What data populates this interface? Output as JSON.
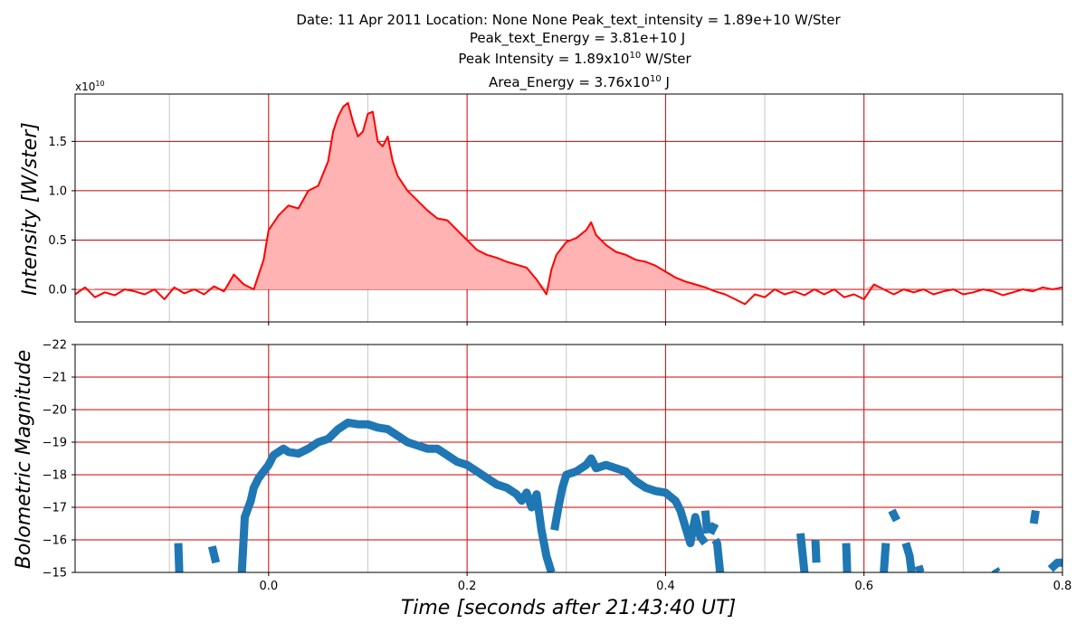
{
  "header": {
    "line1": "Date: 11 Apr 2011      Location: None None Peak_text_intensity = 1.89e+10 W/Ster",
    "line2": "Peak_text_Energy = 3.81e+10 J",
    "line3_base": "Peak Intensity = 1.89x10",
    "line3_exp": "10",
    "line3_unit": " W/Ster",
    "line4_base": "Area_Energy = 3.76x10",
    "line4_exp": "10",
    "line4_unit": " J"
  },
  "colors": {
    "intensity_line": "#ff0000",
    "intensity_fill": "#ffb3b3",
    "magnitude_line": "#1f77b4",
    "red_grid": "#cc0000",
    "gray_grid": "#c8c8c8"
  },
  "chart_data": [
    {
      "type": "area",
      "ylabel": "Intensity [W/ster]",
      "xlabel": "",
      "xlim": [
        -0.195,
        0.8
      ],
      "ylim": [
        -0.33,
        1.98
      ],
      "y_scale_label": "x10",
      "y_scale_exp": "10",
      "yticks": [
        0.0,
        0.5,
        1.0,
        1.5
      ],
      "ytick_labels": [
        "0.0",
        "0.5",
        "1.0",
        "1.5"
      ],
      "red_vlines": [
        0.0,
        0.2,
        0.4,
        0.6
      ],
      "gray_vlines": [
        -0.1,
        0.1,
        0.3,
        0.5,
        0.7
      ],
      "series": [
        {
          "x": [
            -0.195,
            -0.185,
            -0.175,
            -0.165,
            -0.155,
            -0.145,
            -0.135,
            -0.125,
            -0.115,
            -0.105,
            -0.095,
            -0.085,
            -0.075,
            -0.065,
            -0.055,
            -0.045,
            -0.035,
            -0.025,
            -0.015,
            -0.005,
            0.0,
            0.01,
            0.02,
            0.03,
            0.04,
            0.05,
            0.06,
            0.065,
            0.07,
            0.075,
            0.08,
            0.085,
            0.09,
            0.095,
            0.1,
            0.105,
            0.11,
            0.115,
            0.12,
            0.125,
            0.13,
            0.14,
            0.15,
            0.16,
            0.17,
            0.18,
            0.19,
            0.2,
            0.21,
            0.22,
            0.23,
            0.24,
            0.25,
            0.26,
            0.27,
            0.28,
            0.285,
            0.29,
            0.3,
            0.31,
            0.32,
            0.325,
            0.33,
            0.34,
            0.35,
            0.36,
            0.37,
            0.38,
            0.39,
            0.4,
            0.41,
            0.42,
            0.43,
            0.44,
            0.45,
            0.46,
            0.47,
            0.48,
            0.49,
            0.5,
            0.51,
            0.52,
            0.53,
            0.54,
            0.55,
            0.56,
            0.57,
            0.58,
            0.59,
            0.6,
            0.61,
            0.62,
            0.63,
            0.64,
            0.65,
            0.66,
            0.67,
            0.68,
            0.69,
            0.7,
            0.71,
            0.72,
            0.73,
            0.74,
            0.75,
            0.76,
            0.77,
            0.78,
            0.79,
            0.8
          ],
          "y": [
            -0.05,
            0.02,
            -0.08,
            -0.03,
            -0.06,
            0.0,
            -0.02,
            -0.05,
            0.0,
            -0.1,
            0.02,
            -0.04,
            0.0,
            -0.05,
            0.03,
            -0.02,
            0.15,
            0.05,
            0.0,
            0.3,
            0.6,
            0.75,
            0.85,
            0.82,
            1.0,
            1.05,
            1.3,
            1.6,
            1.75,
            1.85,
            1.89,
            1.7,
            1.55,
            1.6,
            1.78,
            1.8,
            1.5,
            1.45,
            1.55,
            1.3,
            1.15,
            1.0,
            0.9,
            0.8,
            0.72,
            0.7,
            0.6,
            0.5,
            0.4,
            0.35,
            0.32,
            0.28,
            0.25,
            0.22,
            0.1,
            -0.05,
            0.2,
            0.35,
            0.48,
            0.52,
            0.6,
            0.68,
            0.55,
            0.45,
            0.38,
            0.35,
            0.3,
            0.28,
            0.24,
            0.18,
            0.12,
            0.08,
            0.05,
            0.02,
            -0.02,
            -0.05,
            -0.1,
            -0.15,
            -0.05,
            -0.08,
            0.0,
            -0.05,
            -0.02,
            -0.06,
            0.0,
            -0.05,
            0.0,
            -0.08,
            -0.05,
            -0.1,
            0.05,
            0.0,
            -0.05,
            0.0,
            -0.03,
            0.0,
            -0.05,
            -0.02,
            0.0,
            -0.05,
            -0.03,
            0.0,
            -0.02,
            -0.06,
            -0.03,
            0.0,
            -0.02,
            0.02,
            0.0,
            0.02
          ]
        }
      ]
    },
    {
      "type": "line",
      "ylabel": "Bolometric Magnitude",
      "xlabel": "Time [seconds after 21:43:40 UT]",
      "xlim": [
        -0.195,
        0.8
      ],
      "ylim": [
        -15,
        -22
      ],
      "yticks": [
        -15,
        -16,
        -17,
        -18,
        -19,
        -20,
        -21,
        -22
      ],
      "ytick_labels": [
        "−15",
        "−16",
        "−17",
        "−18",
        "−19",
        "−20",
        "−21",
        "−22"
      ],
      "xticks": [
        0.0,
        0.2,
        0.4,
        0.6,
        0.8
      ],
      "xtick_labels": [
        "0.0",
        "0.2",
        "0.4",
        "0.6",
        "0.8"
      ],
      "red_vlines": [
        0.0,
        0.2,
        0.4,
        0.6
      ],
      "gray_vlines": [
        -0.1,
        0.1,
        0.3,
        0.5,
        0.7
      ],
      "series": [
        {
          "segments": [
            [
              [
                -0.091,
                -15.9
              ],
              [
                -0.09,
                -15.0
              ]
            ],
            [
              [
                -0.057,
                -15.8
              ],
              [
                -0.053,
                -15.3
              ]
            ],
            [
              [
                -0.027,
                -15.0
              ],
              [
                -0.024,
                -16.7
              ],
              [
                -0.018,
                -17.2
              ],
              [
                -0.015,
                -17.6
              ],
              [
                -0.01,
                -17.9
              ],
              [
                -0.005,
                -18.1
              ],
              [
                0.0,
                -18.3
              ],
              [
                0.005,
                -18.6
              ],
              [
                0.01,
                -18.7
              ],
              [
                0.015,
                -18.8
              ],
              [
                0.02,
                -18.7
              ],
              [
                0.03,
                -18.65
              ],
              [
                0.04,
                -18.8
              ],
              [
                0.05,
                -19.0
              ],
              [
                0.06,
                -19.1
              ],
              [
                0.07,
                -19.4
              ],
              [
                0.08,
                -19.6
              ],
              [
                0.09,
                -19.55
              ],
              [
                0.1,
                -19.55
              ],
              [
                0.11,
                -19.45
              ],
              [
                0.12,
                -19.4
              ],
              [
                0.13,
                -19.2
              ],
              [
                0.14,
                -19.0
              ],
              [
                0.15,
                -18.9
              ],
              [
                0.16,
                -18.8
              ],
              [
                0.17,
                -18.8
              ],
              [
                0.18,
                -18.6
              ],
              [
                0.19,
                -18.4
              ],
              [
                0.2,
                -18.3
              ],
              [
                0.21,
                -18.1
              ],
              [
                0.22,
                -17.9
              ],
              [
                0.23,
                -17.7
              ],
              [
                0.24,
                -17.6
              ],
              [
                0.25,
                -17.4
              ],
              [
                0.255,
                -17.2
              ],
              [
                0.26,
                -17.45
              ],
              [
                0.265,
                -17.0
              ],
              [
                0.27,
                -17.4
              ],
              [
                0.275,
                -16.3
              ],
              [
                0.28,
                -15.5
              ],
              [
                0.285,
                -15.0
              ]
            ],
            [
              [
                0.288,
                -16.3
              ],
              [
                0.292,
                -17.0
              ],
              [
                0.296,
                -17.6
              ],
              [
                0.3,
                -18.0
              ],
              [
                0.31,
                -18.1
              ],
              [
                0.32,
                -18.3
              ],
              [
                0.325,
                -18.5
              ],
              [
                0.33,
                -18.2
              ],
              [
                0.34,
                -18.3
              ],
              [
                0.35,
                -18.2
              ],
              [
                0.36,
                -18.1
              ],
              [
                0.37,
                -17.8
              ],
              [
                0.38,
                -17.6
              ],
              [
                0.39,
                -17.5
              ],
              [
                0.4,
                -17.45
              ],
              [
                0.41,
                -17.2
              ],
              [
                0.415,
                -16.9
              ],
              [
                0.42,
                -16.4
              ],
              [
                0.425,
                -15.9
              ],
              [
                0.43,
                -16.7
              ],
              [
                0.435,
                -16.1
              ],
              [
                0.44,
                -15.9
              ]
            ],
            [
              [
                0.44,
                -16.9
              ],
              [
                0.442,
                -16.2
              ]
            ],
            [
              [
                0.445,
                -16.2
              ],
              [
                0.45,
                -16.5
              ]
            ],
            [
              [
                0.45,
                -16.0
              ],
              [
                0.452,
                -15.9
              ],
              [
                0.455,
                -15.0
              ]
            ],
            [
              [
                0.536,
                -16.2
              ],
              [
                0.538,
                -15.6
              ],
              [
                0.54,
                -15.0
              ]
            ],
            [
              [
                0.551,
                -16.0
              ],
              [
                0.552,
                -15.3
              ]
            ],
            [
              [
                0.582,
                -15.9
              ],
              [
                0.583,
                -15.0
              ]
            ],
            [
              [
                0.62,
                -15.0
              ],
              [
                0.622,
                -15.9
              ]
            ],
            [
              [
                0.628,
                -16.9
              ],
              [
                0.633,
                -16.6
              ]
            ],
            [
              [
                0.642,
                -15.9
              ],
              [
                0.646,
                -15.5
              ],
              [
                0.648,
                -15.0
              ]
            ],
            [
              [
                0.655,
                -15.2
              ],
              [
                0.657,
                -15.0
              ]
            ],
            [
              [
                0.732,
                -15.1
              ],
              [
                0.734,
                -15.0
              ]
            ],
            [
              [
                0.771,
                -16.5
              ],
              [
                0.773,
                -16.9
              ]
            ],
            [
              [
                0.788,
                -15.1
              ],
              [
                0.795,
                -15.3
              ],
              [
                0.8,
                -15.3
              ]
            ]
          ]
        }
      ]
    }
  ]
}
